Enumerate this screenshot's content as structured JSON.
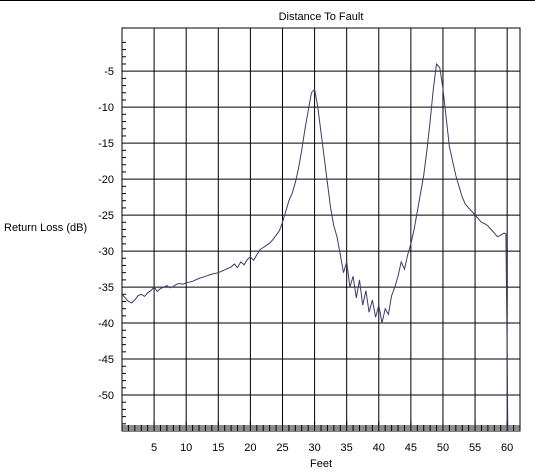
{
  "chart_data": {
    "type": "line",
    "title": "Distance To Fault",
    "xlabel": "Feet",
    "ylabel": "Return Loss (dB)",
    "xlim": [
      0,
      62
    ],
    "ylim": [
      -55,
      1
    ],
    "x_ticks": [
      5,
      10,
      15,
      20,
      25,
      30,
      35,
      40,
      45,
      50,
      55,
      60
    ],
    "y_ticks": [
      -5,
      -10,
      -15,
      -20,
      -25,
      -30,
      -35,
      -40,
      -45,
      -50
    ],
    "grid": true,
    "series": [
      {
        "color": "#3b3b6e",
        "x": [
          0,
          0.5,
          1,
          1.5,
          2,
          2.5,
          3,
          3.5,
          4,
          4.5,
          5,
          5.5,
          6,
          6.5,
          7,
          7.5,
          8,
          8.5,
          9,
          9.5,
          10,
          11,
          12,
          13,
          14,
          15,
          16,
          17,
          17.5,
          18,
          18.5,
          19,
          19.5,
          20,
          20.5,
          21,
          21.5,
          22,
          22.5,
          23,
          23.5,
          24,
          24.5,
          25,
          25.5,
          26,
          26.5,
          27,
          27.5,
          28,
          28.5,
          29,
          29.5,
          30,
          30.5,
          31,
          31.5,
          32,
          32.5,
          33,
          33.5,
          34,
          34.5,
          35,
          35.5,
          36,
          36.5,
          37,
          37.5,
          38,
          38.5,
          39,
          39.5,
          40,
          40.5,
          41,
          41.5,
          42,
          42.5,
          43,
          43.5,
          44,
          44.5,
          45,
          45.5,
          46,
          46.5,
          47,
          47.5,
          48,
          48.5,
          49,
          49.5,
          50,
          50.5,
          51,
          51.5,
          52,
          52.5,
          53,
          53.5,
          54,
          54.5,
          55,
          55.5,
          56,
          56.5,
          57,
          57.5,
          58,
          58.5,
          59,
          59.5,
          59.8,
          60,
          60.1
        ],
        "y": [
          -36,
          -36.5,
          -37,
          -37.2,
          -36.8,
          -36.2,
          -36,
          -36.3,
          -35.8,
          -35.5,
          -35,
          -35.6,
          -35.2,
          -35,
          -34.8,
          -35.1,
          -34.9,
          -34.6,
          -34.5,
          -34.6,
          -34.4,
          -34.2,
          -33.8,
          -33.5,
          -33.2,
          -33,
          -32.6,
          -32.2,
          -31.8,
          -32.3,
          -31.5,
          -31.9,
          -31.2,
          -30.8,
          -31.3,
          -30.5,
          -29.8,
          -29.5,
          -29.2,
          -28.9,
          -28.4,
          -27.8,
          -27.2,
          -26,
          -24.5,
          -23,
          -22,
          -20.5,
          -18.5,
          -16,
          -13,
          -10.5,
          -8,
          -7.5,
          -10,
          -13.5,
          -17,
          -20.5,
          -24,
          -26.5,
          -28,
          -30.5,
          -33,
          -31.5,
          -35,
          -33.5,
          -36.5,
          -34,
          -37.5,
          -35.5,
          -38.5,
          -36.8,
          -39.2,
          -37.5,
          -40,
          -38,
          -38.8,
          -36.2,
          -35,
          -33.5,
          -31.5,
          -32.5,
          -30.5,
          -29,
          -27,
          -24.5,
          -22,
          -19.5,
          -16,
          -12,
          -7.5,
          -4,
          -4.5,
          -7.5,
          -11.5,
          -15.5,
          -17.5,
          -19.5,
          -21,
          -22.5,
          -23.5,
          -24,
          -24.5,
          -25,
          -25.5,
          -26,
          -26.2,
          -26.5,
          -27,
          -27.5,
          -28,
          -27.8,
          -27.5,
          -27.6,
          -45,
          -56
        ]
      }
    ]
  }
}
